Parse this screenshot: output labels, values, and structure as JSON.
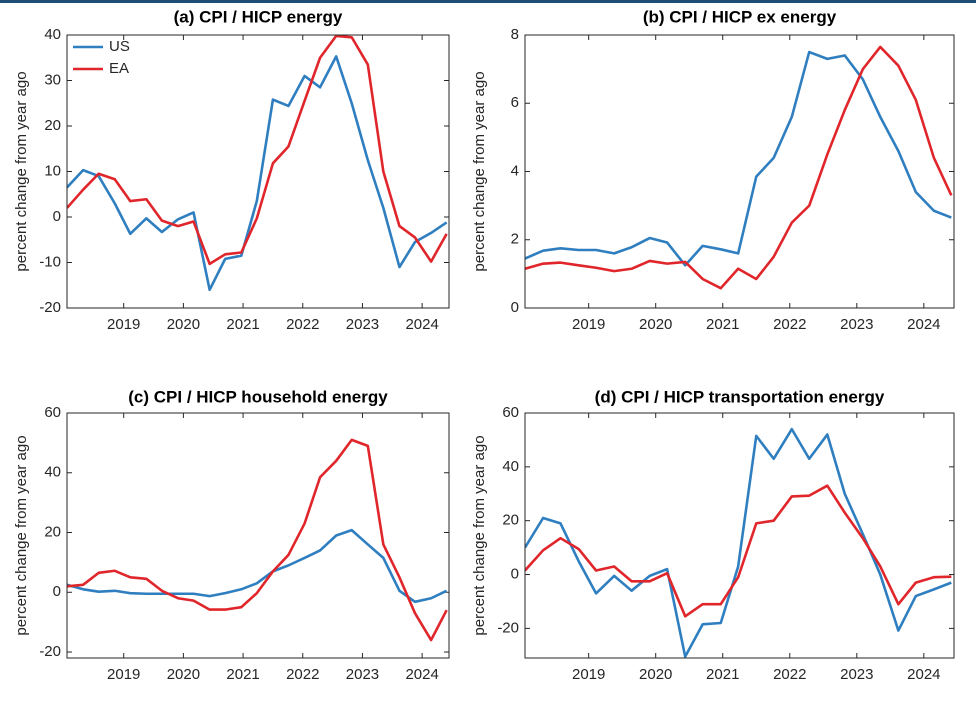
{
  "chart_data": [
    {
      "type": "line",
      "title": "(a) CPI / HICP  energy",
      "ylabel": "percent change from year ago",
      "x": [
        2018.05,
        2018.32,
        2018.58,
        2018.85,
        2019.11,
        2019.38,
        2019.64,
        2019.91,
        2020.17,
        2020.44,
        2020.7,
        2020.97,
        2021.23,
        2021.5,
        2021.76,
        2022.03,
        2022.29,
        2022.56,
        2022.82,
        2023.09,
        2023.35,
        2023.62,
        2023.88,
        2024.15,
        2024.41
      ],
      "xlim": [
        2018.05,
        2024.45
      ],
      "xticks": [
        2019,
        2020,
        2021,
        2022,
        2023,
        2024
      ],
      "ylim": [
        -20,
        40
      ],
      "yticks": [
        -20,
        -10,
        0,
        10,
        20,
        30,
        40
      ],
      "grid": false,
      "legend": "upper left",
      "series": [
        {
          "name": "US",
          "color": "#2f7fc0",
          "values": [
            6.5,
            10.3,
            9,
            3,
            -3.7,
            -0.3,
            -3.3,
            -0.5,
            1,
            -16,
            -9.2,
            -8.5,
            3.5,
            25.8,
            24.4,
            31,
            28.5,
            35.3,
            25,
            12.5,
            2,
            -11,
            -5.5,
            -3.5,
            -1.2
          ]
        },
        {
          "name": "EA",
          "color": "#e0262b",
          "values": [
            2,
            6,
            9.5,
            8.3,
            3.5,
            3.9,
            -0.8,
            -2,
            -1,
            -10.3,
            -8.2,
            -7.8,
            -0.3,
            11.8,
            15.5,
            25.5,
            35,
            39.8,
            39.5,
            33.5,
            10,
            -2,
            -4.5,
            -9.8,
            -3.7
          ]
        }
      ]
    },
    {
      "type": "line",
      "title": "(b) CPI / HICP ex energy",
      "ylabel": "percent change from year ago",
      "x": [
        2018.05,
        2018.32,
        2018.58,
        2018.85,
        2019.11,
        2019.38,
        2019.64,
        2019.91,
        2020.17,
        2020.44,
        2020.7,
        2020.97,
        2021.23,
        2021.5,
        2021.76,
        2022.03,
        2022.29,
        2022.56,
        2022.82,
        2023.09,
        2023.35,
        2023.62,
        2023.88,
        2024.15,
        2024.41
      ],
      "xlim": [
        2018.05,
        2024.45
      ],
      "xticks": [
        2019,
        2020,
        2021,
        2022,
        2023,
        2024
      ],
      "ylim": [
        0,
        8
      ],
      "yticks": [
        0,
        2,
        4,
        6,
        8
      ],
      "grid": false,
      "series": [
        {
          "color": "#2f7fc0",
          "values": [
            1.45,
            1.68,
            1.75,
            1.7,
            1.7,
            1.6,
            1.78,
            2.05,
            1.92,
            1.25,
            1.82,
            1.72,
            1.6,
            3.85,
            4.4,
            5.6,
            7.5,
            7.3,
            7.4,
            6.7,
            5.6,
            4.6,
            3.4,
            2.85,
            2.65
          ]
        },
        {
          "color": "#e0262b",
          "values": [
            1.15,
            1.3,
            1.33,
            1.25,
            1.18,
            1.08,
            1.15,
            1.38,
            1.3,
            1.35,
            0.85,
            0.58,
            1.15,
            0.85,
            1.5,
            2.5,
            3,
            4.5,
            5.8,
            7,
            7.65,
            7.1,
            6.1,
            4.4,
            3.3
          ]
        }
      ]
    },
    {
      "type": "line",
      "title": "(c) CPI / HICP  household energy",
      "ylabel": "percent change from year ago",
      "x": [
        2018.05,
        2018.32,
        2018.58,
        2018.85,
        2019.11,
        2019.38,
        2019.64,
        2019.91,
        2020.17,
        2020.44,
        2020.7,
        2020.97,
        2021.23,
        2021.5,
        2021.76,
        2022.03,
        2022.29,
        2022.56,
        2022.82,
        2023.09,
        2023.35,
        2023.62,
        2023.88,
        2024.15,
        2024.41
      ],
      "xlim": [
        2018.05,
        2024.45
      ],
      "xticks": [
        2019,
        2020,
        2021,
        2022,
        2023,
        2024
      ],
      "ylim": [
        -22,
        60
      ],
      "yticks": [
        -20,
        0,
        20,
        40,
        60
      ],
      "grid": false,
      "series": [
        {
          "color": "#2f7fc0",
          "values": [
            2.5,
            1,
            0.2,
            0.5,
            -0.3,
            -0.5,
            -0.5,
            -0.5,
            -0.5,
            -1.3,
            -0.3,
            1,
            3,
            7,
            9,
            11.5,
            14,
            19,
            20.8,
            16,
            11.5,
            0.5,
            -3.2,
            -2,
            0.5
          ]
        },
        {
          "color": "#e0262b",
          "values": [
            2,
            2.5,
            6.5,
            7.2,
            5,
            4.5,
            0.5,
            -2,
            -2.8,
            -5.8,
            -5.8,
            -5,
            -0.3,
            7,
            12.5,
            23,
            38.5,
            44,
            51,
            49,
            16,
            5,
            -7,
            -16,
            -6
          ]
        }
      ]
    },
    {
      "type": "line",
      "title": "(d) CPI / HICP transportation energy",
      "ylabel": "percent change from year ago",
      "x": [
        2018.05,
        2018.32,
        2018.58,
        2018.85,
        2019.11,
        2019.38,
        2019.64,
        2019.91,
        2020.17,
        2020.44,
        2020.7,
        2020.97,
        2021.23,
        2021.5,
        2021.76,
        2022.03,
        2022.29,
        2022.56,
        2022.82,
        2023.09,
        2023.35,
        2023.62,
        2023.88,
        2024.15,
        2024.41
      ],
      "xlim": [
        2018.05,
        2024.45
      ],
      "xticks": [
        2019,
        2020,
        2021,
        2022,
        2023,
        2024
      ],
      "ylim": [
        -31,
        60
      ],
      "yticks": [
        -20,
        0,
        20,
        40,
        60
      ],
      "grid": false,
      "series": [
        {
          "color": "#2f7fc0",
          "values": [
            10,
            21,
            19,
            5,
            -7,
            -0.5,
            -6,
            -0.5,
            2,
            -30.5,
            -18.5,
            -18,
            3,
            51.5,
            43,
            54,
            43,
            52,
            30,
            15,
            0,
            -20.8,
            -8,
            -5.5,
            -3
          ]
        },
        {
          "color": "#e0262b",
          "values": [
            1.5,
            9,
            13.5,
            9.5,
            1.5,
            3,
            -2.5,
            -2.5,
            0.5,
            -15.5,
            -11,
            -11,
            -1,
            19,
            20,
            29,
            29.3,
            33,
            23,
            13.5,
            3,
            -11,
            -3,
            -1,
            -0.8
          ]
        }
      ]
    }
  ]
}
